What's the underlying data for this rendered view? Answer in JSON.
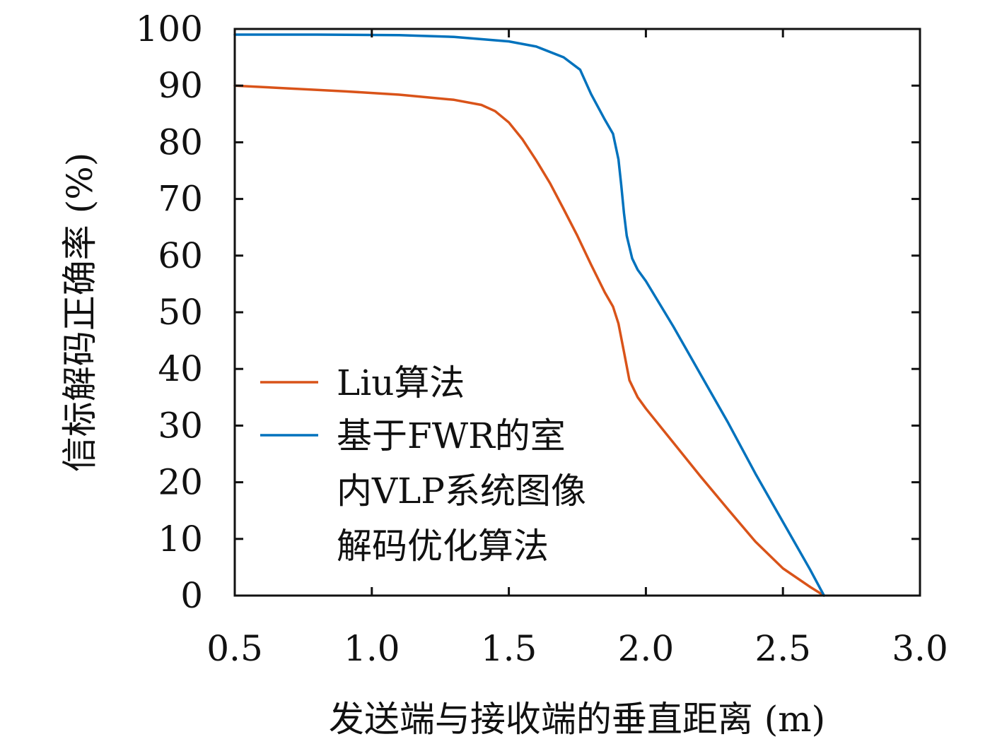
{
  "chart_data": {
    "type": "line",
    "title": "",
    "xlabel": "发送端与接收端的垂直距离 (m)",
    "ylabel": "信标解码正确率 (%)",
    "xlim": [
      0.5,
      3.0
    ],
    "ylim": [
      0,
      100
    ],
    "xticks": [
      "0.5",
      "1.0",
      "1.5",
      "2.0",
      "2.5",
      "3.0"
    ],
    "yticks": [
      "0",
      "10",
      "20",
      "30",
      "40",
      "50",
      "60",
      "70",
      "80",
      "90",
      "100"
    ],
    "grid": false,
    "legend_position": "center-left",
    "series": [
      {
        "name": "Liu算法",
        "color": "#d95319",
        "x": [
          0.5,
          0.7,
          0.9,
          1.1,
          1.3,
          1.4,
          1.45,
          1.5,
          1.55,
          1.6,
          1.65,
          1.7,
          1.75,
          1.8,
          1.85,
          1.88,
          1.9,
          1.92,
          1.94,
          1.97,
          2.0,
          2.1,
          2.2,
          2.3,
          2.4,
          2.5,
          2.6,
          2.65
        ],
        "values": [
          90.0,
          89.5,
          89.0,
          88.4,
          87.5,
          86.6,
          85.5,
          83.5,
          80.5,
          76.8,
          72.8,
          68.2,
          63.5,
          58.4,
          53.5,
          51.0,
          48.0,
          43.0,
          38.0,
          35.0,
          33.0,
          27.0,
          21.0,
          15.2,
          9.5,
          4.8,
          1.5,
          0.0
        ]
      },
      {
        "name": "基于FWR的室内VLP系统图像解码优化算法",
        "legend_lines": [
          "基于FWR的室",
          "内VLP系统图像",
          "解码优化算法"
        ],
        "color": "#0072bd",
        "x": [
          0.5,
          0.8,
          1.1,
          1.3,
          1.5,
          1.6,
          1.7,
          1.76,
          1.8,
          1.85,
          1.88,
          1.9,
          1.91,
          1.92,
          1.93,
          1.95,
          1.97,
          2.0,
          2.1,
          2.2,
          2.3,
          2.4,
          2.5,
          2.6,
          2.65
        ],
        "values": [
          99.0,
          99.0,
          98.9,
          98.6,
          97.8,
          96.9,
          95.0,
          92.8,
          88.5,
          84.0,
          81.5,
          77.0,
          72.5,
          67.5,
          63.5,
          59.5,
          57.5,
          55.5,
          47.5,
          39.0,
          30.5,
          21.5,
          13.0,
          4.5,
          0.0
        ]
      }
    ]
  }
}
